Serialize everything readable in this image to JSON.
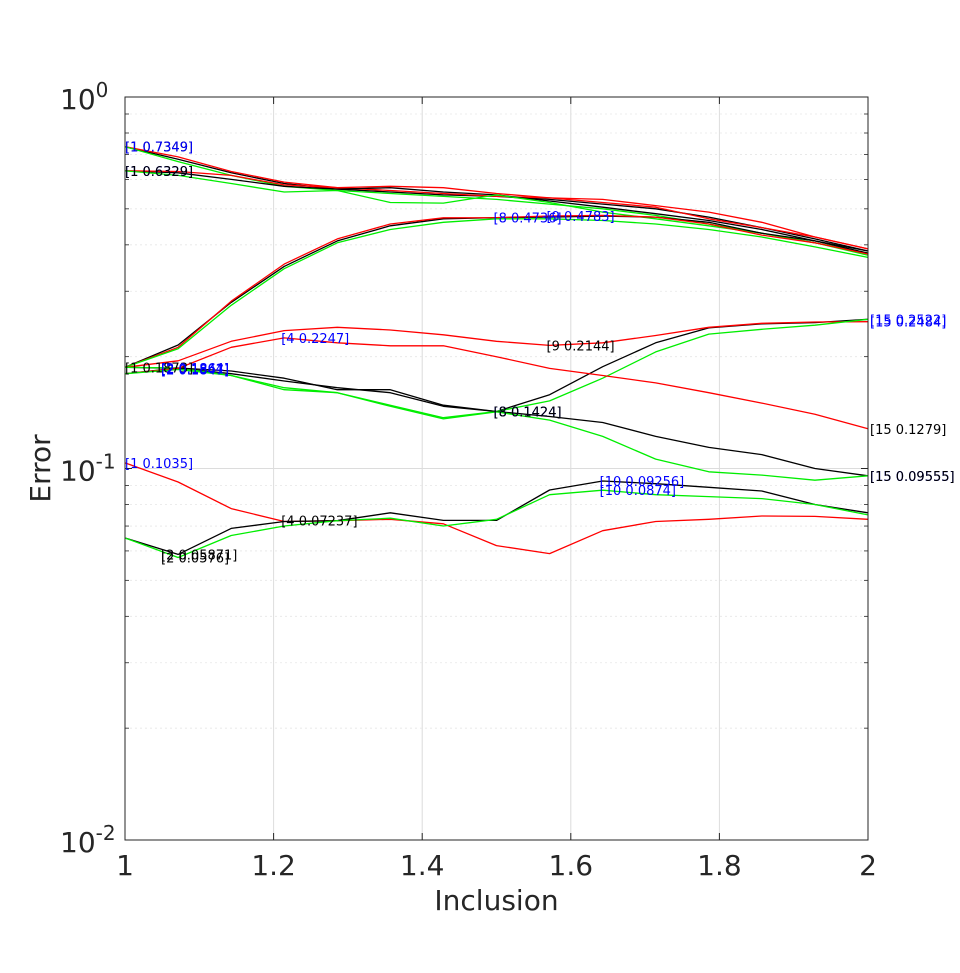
{
  "chart_data": {
    "type": "line",
    "xlabel": "Inclusion",
    "ylabel": "Error",
    "xlim": [
      1,
      2
    ],
    "ylim": [
      0.01,
      1
    ],
    "yscale": "log",
    "grid": true,
    "x": [
      1,
      1.0714,
      1.1429,
      1.2143,
      1.2857,
      1.3571,
      1.4286,
      1.5,
      1.5714,
      1.6429,
      1.7143,
      1.7857,
      1.8571,
      1.9286,
      2
    ],
    "x_ticks": [
      {
        "value": 1,
        "label": "1"
      },
      {
        "value": 1.2,
        "label": "1.2"
      },
      {
        "value": 1.4,
        "label": "1.4"
      },
      {
        "value": 1.6,
        "label": "1.6"
      },
      {
        "value": 1.8,
        "label": "1.8"
      },
      {
        "value": 2,
        "label": "2"
      }
    ],
    "y_ticks": [
      {
        "value": 1,
        "base": "10",
        "exp": "0"
      },
      {
        "value": 0.1,
        "base": "10",
        "exp": "-1"
      },
      {
        "value": 0.01,
        "base": "10",
        "exp": "-2"
      }
    ],
    "colors": {
      "black": "#000000",
      "red": "#ff0000",
      "green": "#00ee00",
      "blue": "#0000ff"
    },
    "series": [
      {
        "color": "black",
        "values": [
          0.7349,
          0.68,
          0.625,
          0.585,
          0.565,
          0.555,
          0.545,
          0.54,
          0.53,
          0.515,
          0.5,
          0.475,
          0.445,
          0.415,
          0.385
        ]
      },
      {
        "color": "red",
        "values": [
          0.7349,
          0.69,
          0.63,
          0.59,
          0.57,
          0.56,
          0.55,
          0.54,
          0.535,
          0.53,
          0.51,
          0.49,
          0.46,
          0.42,
          0.39
        ]
      },
      {
        "color": "green",
        "values": [
          0.7349,
          0.67,
          0.615,
          0.575,
          0.56,
          0.55,
          0.54,
          0.53,
          0.515,
          0.5,
          0.48,
          0.455,
          0.43,
          0.405,
          0.38
        ]
      },
      {
        "color": "black",
        "values": [
          0.6329,
          0.625,
          0.6,
          0.575,
          0.565,
          0.57,
          0.555,
          0.545,
          0.525,
          0.505,
          0.485,
          0.465,
          0.44,
          0.41,
          0.385
        ]
      },
      {
        "color": "red",
        "values": [
          0.6329,
          0.63,
          0.615,
          0.58,
          0.57,
          0.575,
          0.57,
          0.55,
          0.535,
          0.52,
          0.505,
          0.47,
          0.445,
          0.42,
          0.39
        ]
      },
      {
        "color": "green",
        "values": [
          0.6329,
          0.615,
          0.585,
          0.555,
          0.56,
          0.52,
          0.518,
          0.545,
          0.52,
          0.49,
          0.47,
          0.45,
          0.43,
          0.405,
          0.375
        ]
      },
      {
        "color": "black",
        "values": [
          0.1873,
          0.215,
          0.28,
          0.35,
          0.41,
          0.45,
          0.47,
          0.4736,
          0.475,
          0.478,
          0.475,
          0.46,
          0.43,
          0.41,
          0.38
        ]
      },
      {
        "color": "red",
        "values": [
          0.1873,
          0.212,
          0.282,
          0.355,
          0.415,
          0.455,
          0.473,
          0.4736,
          0.4783,
          0.48,
          0.475,
          0.455,
          0.425,
          0.405,
          0.378
        ]
      },
      {
        "color": "green",
        "values": [
          0.1873,
          0.21,
          0.275,
          0.345,
          0.405,
          0.44,
          0.46,
          0.47,
          0.47,
          0.465,
          0.455,
          0.44,
          0.42,
          0.395,
          0.37
        ]
      },
      {
        "color": "black",
        "values": [
          0.1873,
          0.1861,
          0.18,
          0.172,
          0.165,
          0.16,
          0.147,
          0.1424,
          0.158,
          0.188,
          0.218,
          0.239,
          0.245,
          0.247,
          0.2522
        ]
      },
      {
        "color": "red",
        "values": [
          0.1873,
          0.195,
          0.22,
          0.235,
          0.24,
          0.236,
          0.229,
          0.22,
          0.2144,
          0.218,
          0.228,
          0.24,
          0.246,
          0.248,
          0.2484
        ]
      },
      {
        "color": "green",
        "values": [
          0.1873,
          0.1864,
          0.178,
          0.165,
          0.16,
          0.148,
          0.137,
          0.1424,
          0.152,
          0.175,
          0.206,
          0.23,
          0.237,
          0.243,
          0.2522
        ]
      },
      {
        "color": "black",
        "values": [
          0.18,
          0.1864,
          0.183,
          0.175,
          0.163,
          0.163,
          0.148,
          0.1424,
          0.138,
          0.133,
          0.122,
          0.114,
          0.109,
          0.1,
          0.09555
        ]
      },
      {
        "color": "red",
        "values": [
          0.18,
          0.186,
          0.212,
          0.2247,
          0.218,
          0.214,
          0.214,
          0.2,
          0.186,
          0.178,
          0.17,
          0.16,
          0.15,
          0.14,
          0.1279
        ]
      },
      {
        "color": "green",
        "values": [
          0.18,
          0.1847,
          0.178,
          0.163,
          0.16,
          0.147,
          0.136,
          0.142,
          0.135,
          0.122,
          0.106,
          0.098,
          0.096,
          0.093,
          0.09555
        ]
      },
      {
        "color": "red",
        "values": [
          0.1035,
          0.092,
          0.078,
          0.072,
          0.07237,
          0.073,
          0.071,
          0.062,
          0.059,
          0.068,
          0.072,
          0.073,
          0.0745,
          0.0743,
          0.073
        ]
      },
      {
        "color": "black",
        "values": [
          0.065,
          0.05871,
          0.069,
          0.072,
          0.07237,
          0.076,
          0.0725,
          0.0725,
          0.0875,
          0.09256,
          0.091,
          0.089,
          0.087,
          0.08,
          0.076
        ]
      },
      {
        "color": "green",
        "values": [
          0.065,
          0.0576,
          0.066,
          0.07,
          0.07237,
          0.0735,
          0.07,
          0.073,
          0.085,
          0.0874,
          0.085,
          0.084,
          0.083,
          0.08,
          0.075
        ]
      }
    ],
    "annotations": [
      {
        "text": "[1 0.7349]",
        "x": 1,
        "y": 0.7349,
        "color": "black"
      },
      {
        "text": "[1 0.7349]",
        "x": 1,
        "y": 0.7349,
        "color": "blue"
      },
      {
        "text": "[1 0.6329]",
        "x": 1,
        "y": 0.6329,
        "color": "blue"
      },
      {
        "text": "[1 0.6329]",
        "x": 1,
        "y": 0.6329,
        "color": "black"
      },
      {
        "text": "[8 0.4736]",
        "x": 1.5,
        "y": 0.4736,
        "color": "blue"
      },
      {
        "text": "[9 0.4783]",
        "x": 1.5714,
        "y": 0.4783,
        "color": "blue"
      },
      {
        "text": "[1 0.1873]",
        "x": 1,
        "y": 0.1873,
        "color": "black"
      },
      {
        "text": "[2 0.1861]",
        "x": 1.0714,
        "y": 0.1861,
        "color": "blue"
      },
      {
        "text": "[2 0.1864]",
        "x": 1.0714,
        "y": 0.1864,
        "color": "blue"
      },
      {
        "text": "[2 0.1847]",
        "x": 1.0714,
        "y": 0.1847,
        "color": "blue"
      },
      {
        "text": "[4 0.2247]",
        "x": 1.2143,
        "y": 0.2247,
        "color": "blue"
      },
      {
        "text": "[9 0.2144]",
        "x": 1.5714,
        "y": 0.2144,
        "color": "black"
      },
      {
        "text": "[8 0.1424]",
        "x": 1.5,
        "y": 0.1424,
        "color": "blue"
      },
      {
        "text": "[8 0.1424]",
        "x": 1.5,
        "y": 0.1424,
        "color": "black"
      },
      {
        "text": "[15 0.2522]",
        "x": 2,
        "y": 0.2522,
        "color": "blue"
      },
      {
        "text": "[15 0.2484]",
        "x": 2,
        "y": 0.2484,
        "color": "blue"
      },
      {
        "text": "[15 0.1279]",
        "x": 2,
        "y": 0.1279,
        "color": "black"
      },
      {
        "text": "[15 0.09555]",
        "x": 2,
        "y": 0.09555,
        "color": "blue"
      },
      {
        "text": "[15 0.09555]",
        "x": 2,
        "y": 0.09555,
        "color": "black"
      },
      {
        "text": "[1 0.1035]",
        "x": 1,
        "y": 0.1035,
        "color": "blue"
      },
      {
        "text": "[4 0.07237]",
        "x": 1.2143,
        "y": 0.07237,
        "color": "black"
      },
      {
        "text": "[2 0.05871]",
        "x": 1.0714,
        "y": 0.05871,
        "color": "black"
      },
      {
        "text": "[2 0.0576]",
        "x": 1.0714,
        "y": 0.0576,
        "color": "black"
      },
      {
        "text": "[10 0.09256]",
        "x": 1.6429,
        "y": 0.09256,
        "color": "blue"
      },
      {
        "text": "[10 0.0874]",
        "x": 1.6429,
        "y": 0.0874,
        "color": "blue"
      }
    ]
  }
}
